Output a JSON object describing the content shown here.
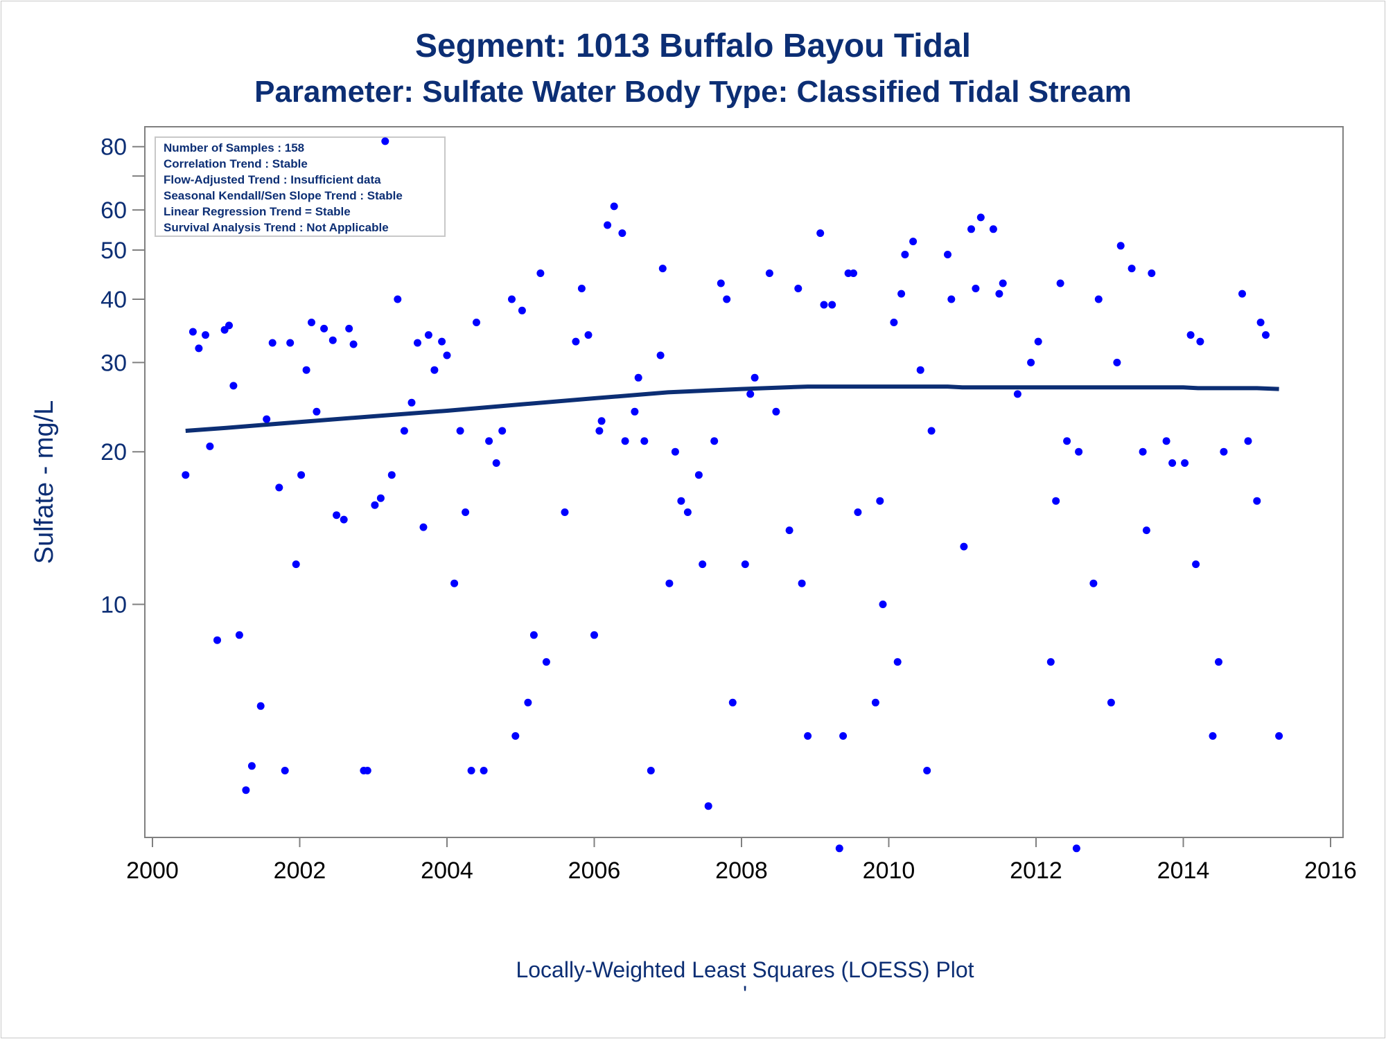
{
  "chart_data": {
    "type": "scatter",
    "title": "Segment: 1013  Buffalo Bayou Tidal",
    "subtitle": "Parameter: Sulfate   Water Body Type: Classified Tidal Stream",
    "ylabel": "Sulfate - mg/L",
    "xlabel": "",
    "footnote": "Locally-Weighted Least Squares (LOESS) Plot",
    "footnote_mark": "'",
    "y_scale": "log",
    "xlim": [
      2000,
      2016
    ],
    "ylim": [
      3.8,
      83
    ],
    "x_ticks": [
      "2000",
      "2002",
      "2004",
      "2006",
      "2008",
      "2010",
      "2012",
      "2014",
      "2016"
    ],
    "y_ticks": [
      "10",
      "20",
      "30",
      "40",
      "50",
      "60",
      "80"
    ],
    "y_minor_ticks": [
      70
    ],
    "grid": false,
    "info_box": {
      "placement": "top-left",
      "lines": [
        "Number of Samples : 158",
        "Correlation Trend : Stable",
        "Flow-Adjusted Trend : Insufficient data",
        "Seasonal Kendall/Sen Slope Trend : Stable",
        "Linear Regression Trend = Stable",
        "Survival Analysis Trend : Not Applicable"
      ]
    },
    "colors": {
      "points": "#0000ff",
      "loess": "#0c2e74",
      "text": "#0c2e74",
      "axis": "#808080"
    },
    "series": [
      {
        "type": "scatter",
        "x": [
          2000.45,
          2000.55,
          2000.63,
          2000.72,
          2000.78,
          2000.88,
          2000.98,
          2001.04,
          2001.1,
          2001.18,
          2001.27,
          2001.35,
          2001.47,
          2001.55,
          2001.63,
          2001.72,
          2001.8,
          2001.87,
          2001.95,
          2002.02,
          2002.09,
          2002.16,
          2002.23,
          2002.33,
          2002.45,
          2002.5,
          2002.6,
          2002.67,
          2002.73,
          2002.87,
          2002.92,
          2003.02,
          2003.1,
          2003.16,
          2003.25,
          2003.33,
          2003.42,
          2003.52,
          2003.6,
          2003.68,
          2003.75,
          2003.83,
          2003.93,
          2004.0,
          2004.1,
          2004.18,
          2004.25,
          2004.33,
          2004.4,
          2004.5,
          2004.57,
          2004.67,
          2004.75,
          2004.88,
          2004.93,
          2005.02,
          2005.1,
          2005.18,
          2005.27,
          2005.35,
          2005.6,
          2005.75,
          2005.83,
          2005.92,
          2006.0,
          2006.07,
          2006.1,
          2006.18,
          2006.27,
          2006.38,
          2006.42,
          2006.55,
          2006.6,
          2006.68,
          2006.77,
          2006.9,
          2006.93,
          2007.02,
          2007.1,
          2007.18,
          2007.27,
          2007.42,
          2007.47,
          2007.55,
          2007.63,
          2007.72,
          2007.8,
          2007.88,
          2008.05,
          2008.12,
          2008.18,
          2008.38,
          2008.47,
          2008.65,
          2008.77,
          2008.82,
          2008.9,
          2009.07,
          2009.12,
          2009.23,
          2009.33,
          2009.38,
          2009.45,
          2009.52,
          2009.58,
          2009.82,
          2009.88,
          2009.92,
          2010.07,
          2010.12,
          2010.17,
          2010.22,
          2010.33,
          2010.43,
          2010.52,
          2010.58,
          2010.8,
          2010.85,
          2011.02,
          2011.12,
          2011.18,
          2011.25,
          2011.42,
          2011.5,
          2011.55,
          2011.75,
          2011.93,
          2012.03,
          2012.2,
          2012.27,
          2012.33,
          2012.42,
          2012.55,
          2012.58,
          2012.78,
          2012.85,
          2013.02,
          2013.1,
          2013.15,
          2013.3,
          2013.45,
          2013.5,
          2013.57,
          2013.77,
          2013.85,
          2014.02,
          2014.1,
          2014.17,
          2014.23,
          2014.4,
          2014.48,
          2014.55,
          2014.8,
          2014.88,
          2015.0,
          2015.05,
          2015.12,
          2015.3
        ],
        "y": [
          18,
          34.5,
          32,
          34,
          20.5,
          8.5,
          34.8,
          35.5,
          27,
          8.7,
          4.3,
          4.8,
          6.3,
          23.2,
          32.8,
          17,
          4.7,
          32.8,
          12,
          18,
          29,
          36,
          24,
          35,
          33.2,
          15,
          14.7,
          35,
          32.6,
          4.7,
          4.7,
          15.7,
          16.2,
          82,
          18,
          40,
          22,
          25,
          32.8,
          14.2,
          34,
          29,
          33,
          31,
          11,
          22,
          15.2,
          4.7,
          36,
          4.7,
          21,
          19,
          22,
          40,
          5.5,
          38,
          6.4,
          8.7,
          45,
          7.7,
          15.2,
          33,
          42,
          34,
          8.7,
          22,
          23,
          56,
          61,
          54,
          21,
          24,
          28,
          21,
          4.7,
          31,
          46,
          11,
          20,
          16,
          15.2,
          18,
          12,
          4,
          21,
          43,
          40,
          6.4,
          12,
          26,
          28,
          45,
          24,
          14,
          42,
          11,
          5.5,
          54,
          39,
          39,
          3.3,
          5.5,
          45,
          45,
          15.2,
          6.4,
          16,
          10,
          36,
          7.7,
          41,
          49,
          52,
          29,
          4.7,
          22,
          49,
          40,
          13,
          55,
          42,
          58,
          55,
          41,
          43,
          26,
          30,
          33,
          7.7,
          16,
          43,
          21,
          3.3,
          20,
          11,
          40,
          6.4,
          30,
          51,
          46,
          20,
          14,
          45,
          21,
          19,
          19,
          34,
          12,
          33,
          5.5,
          7.7,
          20,
          41,
          21,
          16,
          36,
          34,
          5.5
        ]
      },
      {
        "type": "line",
        "x": [
          2000.45,
          2001.0,
          2002.0,
          2003.0,
          2004.0,
          2005.0,
          2006.0,
          2007.0,
          2008.0,
          2008.9,
          2010.0,
          2010.8,
          2011.0,
          2012.0,
          2013.0,
          2014.0,
          2014.2,
          2015.0,
          2015.3
        ],
        "y": [
          22.0,
          22.3,
          22.9,
          23.5,
          24.1,
          24.8,
          25.5,
          26.2,
          26.6,
          26.9,
          26.9,
          26.9,
          26.8,
          26.8,
          26.8,
          26.8,
          26.7,
          26.7,
          26.6
        ]
      }
    ]
  }
}
